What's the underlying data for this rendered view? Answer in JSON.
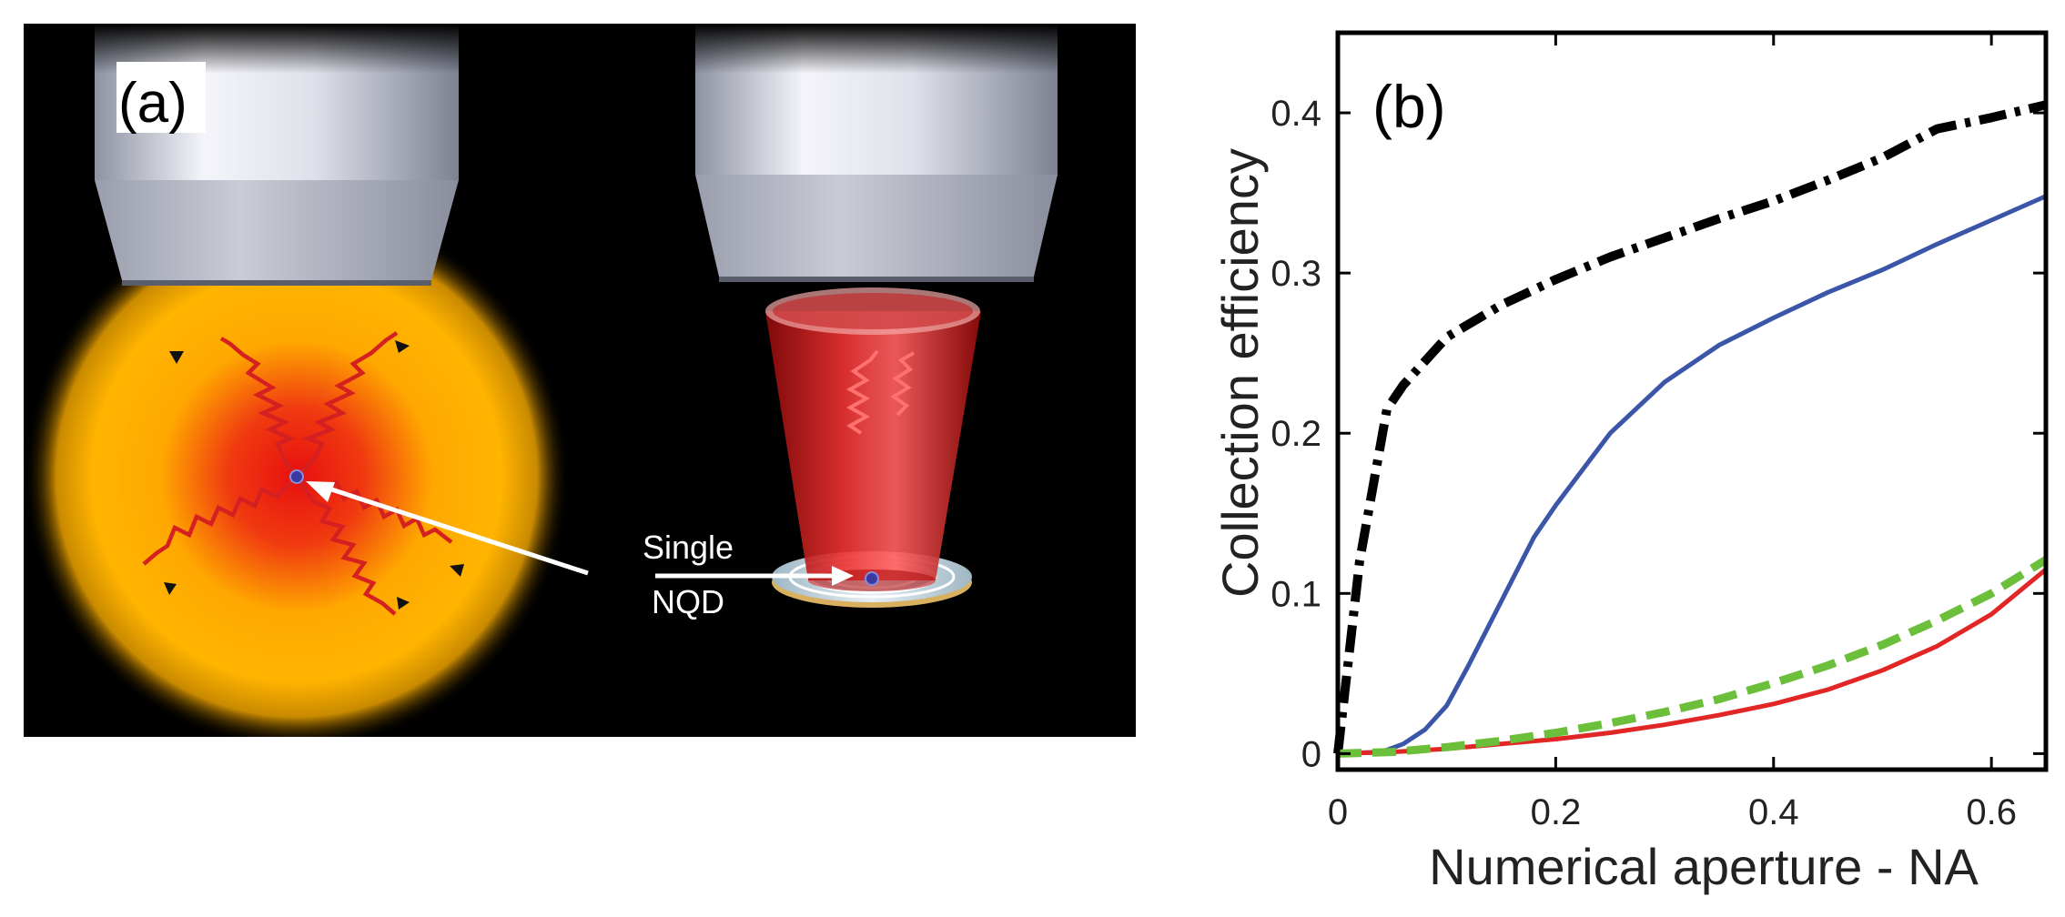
{
  "panel_a": {
    "label": "(a)",
    "annotation_line1": "Single",
    "annotation_line2": "NQD",
    "colors": {
      "background": "#000000",
      "glow": "#ffb000",
      "wave": "#d42020",
      "cone": "#c81818",
      "dot": "#3a3aa0"
    }
  },
  "chart_data": {
    "type": "line",
    "panel_label": "(b)",
    "xlabel": "Numerical aperture - NA",
    "ylabel": "Collection efficiency",
    "xlim": [
      0,
      0.65
    ],
    "ylim": [
      -0.01,
      0.45
    ],
    "xticks": [
      0,
      0.2,
      0.4,
      0.6
    ],
    "xtick_labels": [
      "0",
      "0.2",
      "0.4",
      "0.6"
    ],
    "yticks": [
      0,
      0.1,
      0.2,
      0.3,
      0.4
    ],
    "ytick_labels": [
      "0",
      "0.1",
      "0.2",
      "0.3",
      "0.4"
    ],
    "grid": false,
    "series": [
      {
        "name": "black-dashdot",
        "color": "#000000",
        "style": "dashdot",
        "x": [
          0,
          0.02,
          0.045,
          0.06,
          0.1,
          0.15,
          0.2,
          0.25,
          0.3,
          0.35,
          0.4,
          0.45,
          0.5,
          0.55,
          0.6,
          0.65
        ],
        "y": [
          0,
          0.12,
          0.215,
          0.23,
          0.26,
          0.28,
          0.296,
          0.31,
          0.322,
          0.334,
          0.345,
          0.358,
          0.372,
          0.39,
          0.397,
          0.405
        ]
      },
      {
        "name": "blue-solid",
        "color": "#3b55a8",
        "style": "solid",
        "x": [
          0,
          0.04,
          0.06,
          0.08,
          0.1,
          0.12,
          0.15,
          0.18,
          0.2,
          0.25,
          0.3,
          0.35,
          0.4,
          0.45,
          0.5,
          0.55,
          0.6,
          0.65
        ],
        "y": [
          0,
          0.001,
          0.006,
          0.015,
          0.03,
          0.055,
          0.095,
          0.135,
          0.155,
          0.2,
          0.232,
          0.255,
          0.272,
          0.288,
          0.302,
          0.318,
          0.333,
          0.348
        ]
      },
      {
        "name": "red-solid",
        "color": "#e22525",
        "style": "solid",
        "x": [
          0,
          0.05,
          0.1,
          0.15,
          0.2,
          0.25,
          0.3,
          0.35,
          0.4,
          0.45,
          0.5,
          0.55,
          0.6,
          0.65
        ],
        "y": [
          0,
          0.001,
          0.003,
          0.006,
          0.009,
          0.013,
          0.018,
          0.024,
          0.031,
          0.04,
          0.052,
          0.067,
          0.087,
          0.115
        ]
      },
      {
        "name": "green-dashed",
        "color": "#6cbf3a",
        "style": "dashed",
        "x": [
          0,
          0.05,
          0.1,
          0.15,
          0.2,
          0.25,
          0.3,
          0.35,
          0.4,
          0.45,
          0.5,
          0.55,
          0.6,
          0.65
        ],
        "y": [
          0,
          0.001,
          0.004,
          0.008,
          0.013,
          0.019,
          0.026,
          0.034,
          0.044,
          0.055,
          0.068,
          0.083,
          0.1,
          0.121
        ]
      }
    ]
  }
}
